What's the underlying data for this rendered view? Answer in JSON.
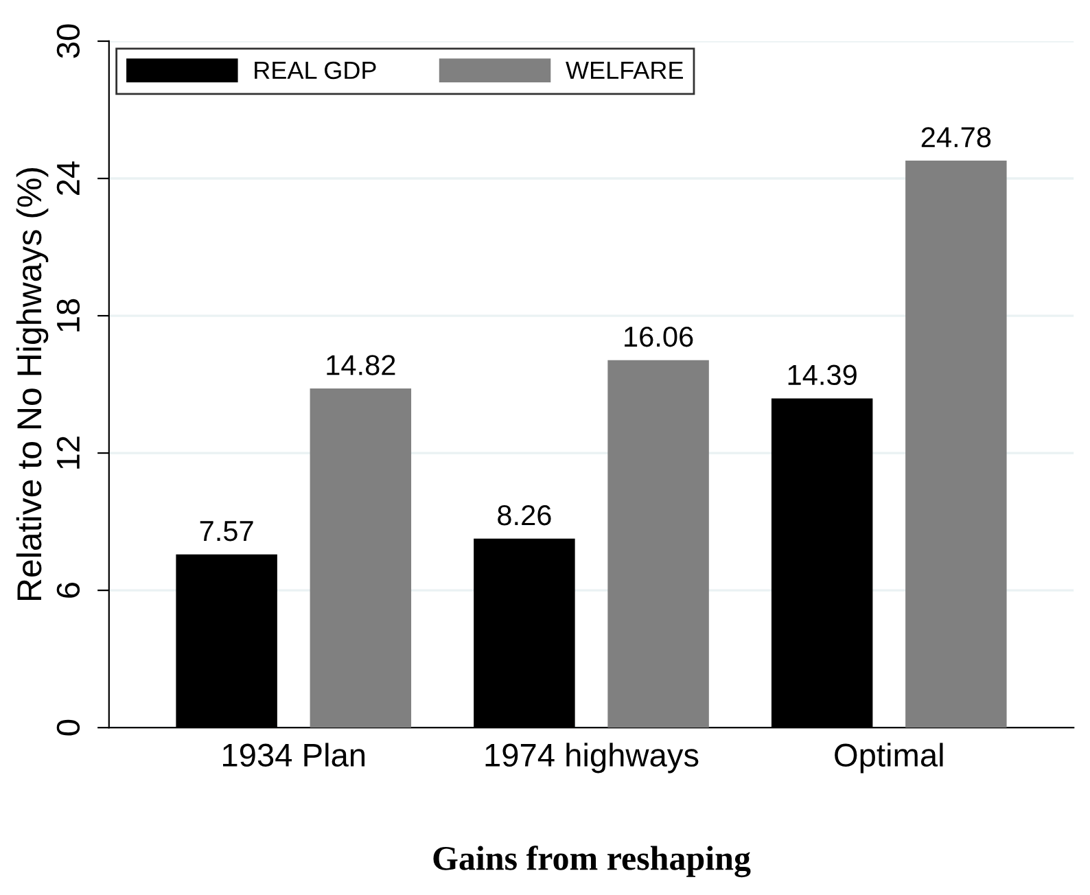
{
  "chart_data": {
    "type": "bar",
    "xlabel": "Gains from reshaping",
    "ylabel": "Relative to No Highways (%)",
    "categories": [
      "1934 Plan",
      "1974 highways",
      "Optimal"
    ],
    "series": [
      {
        "name": "REAL GDP",
        "color": "#000000",
        "values": [
          7.57,
          8.26,
          14.39
        ]
      },
      {
        "name": "WELFARE",
        "color": "#808080",
        "values": [
          14.82,
          16.06,
          24.78
        ]
      }
    ],
    "ylim": [
      0,
      30
    ],
    "yticks": [
      0,
      6,
      12,
      18,
      24,
      30
    ],
    "grid": "y",
    "legend": "top left",
    "data_labels": true
  }
}
